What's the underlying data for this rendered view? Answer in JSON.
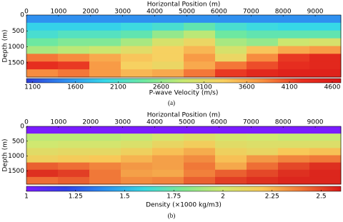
{
  "chart_data": [
    {
      "type": "heatmap",
      "xlabel": "Horizontal Position (m)",
      "ylabel": "Depth (m)",
      "xlim": [
        0,
        9800
      ],
      "xticks": [
        0,
        1000,
        2000,
        3000,
        4000,
        5000,
        6000,
        7000,
        8000,
        9000
      ],
      "ylim": [
        0,
        1950
      ],
      "yticks": [
        0,
        500,
        1000,
        1500
      ],
      "values": [
        [
          1500,
          1500,
          1500,
          1500,
          1500,
          1500,
          1500,
          1500,
          1500,
          1500
        ],
        [
          1900,
          1900,
          1900,
          2000,
          2100,
          2300,
          2100,
          2000,
          1950,
          1950
        ],
        [
          2100,
          2200,
          2200,
          2300,
          2600,
          2800,
          2400,
          2300,
          2300,
          2300
        ],
        [
          2400,
          2500,
          2500,
          2700,
          3000,
          3200,
          2700,
          2600,
          2900,
          3000
        ],
        [
          2700,
          2800,
          2900,
          3100,
          3300,
          3500,
          3000,
          3400,
          3600,
          3700
        ],
        [
          3900,
          3800,
          3600,
          3400,
          3300,
          3700,
          3200,
          3800,
          4200,
          4400
        ],
        [
          4300,
          4200,
          3700,
          3300,
          3200,
          3600,
          3900,
          4100,
          4300,
          4400
        ],
        [
          3800,
          3900,
          3700,
          3500,
          3600,
          3900,
          4200,
          4400,
          4500,
          4500
        ]
      ],
      "colormap": [
        "#2f3fd8",
        "#2f8ef0",
        "#36d8e8",
        "#6ee8a0",
        "#c8e870",
        "#f8d060",
        "#f89040",
        "#e83020",
        "#d81818"
      ],
      "colorbar_label": "P-wave Velocity (m/s)",
      "clim": [
        1028,
        4700
      ],
      "cticks": [
        1100,
        1600,
        2100,
        2600,
        3100,
        3600,
        4100,
        4600
      ],
      "caption": "(a)"
    },
    {
      "type": "heatmap",
      "xlabel": "Horizontal Position (m)",
      "ylabel": "Depth (m)",
      "xlim": [
        0,
        9800
      ],
      "xticks": [
        0,
        1000,
        2000,
        3000,
        4000,
        5000,
        6000,
        7000,
        8000,
        9000
      ],
      "ylim": [
        0,
        1950
      ],
      "yticks": [
        0,
        500,
        1000,
        1500
      ],
      "values": [
        [
          1.0,
          1.0,
          1.0,
          1.0,
          1.0,
          1.0,
          1.0,
          1.0,
          1.0,
          1.0
        ],
        [
          1.95,
          1.95,
          1.95,
          1.97,
          2.02,
          2.07,
          2.02,
          2.0,
          1.98,
          1.98
        ],
        [
          2.0,
          2.02,
          2.02,
          2.05,
          2.12,
          2.17,
          2.08,
          2.06,
          2.06,
          2.06
        ],
        [
          2.08,
          2.1,
          2.1,
          2.15,
          2.22,
          2.27,
          2.15,
          2.12,
          2.2,
          2.22
        ],
        [
          2.15,
          2.18,
          2.2,
          2.25,
          2.3,
          2.35,
          2.22,
          2.32,
          2.37,
          2.4
        ],
        [
          2.45,
          2.42,
          2.37,
          2.32,
          2.3,
          2.4,
          2.28,
          2.42,
          2.5,
          2.55
        ],
        [
          2.55,
          2.52,
          2.4,
          2.3,
          2.28,
          2.38,
          2.45,
          2.5,
          2.55,
          2.57
        ],
        [
          2.42,
          2.45,
          2.4,
          2.35,
          2.37,
          2.45,
          2.52,
          2.55,
          2.57,
          2.57
        ]
      ],
      "colormap": [
        "#7a1cff",
        "#3040e8",
        "#2a90f0",
        "#38d8e0",
        "#80e890",
        "#d0e870",
        "#f8c858",
        "#f07838",
        "#d81818"
      ],
      "colorbar_label": "Density (×1000 kg/m3)",
      "clim": [
        1,
        2.6
      ],
      "cticks": [
        1,
        1.25,
        1.5,
        1.75,
        2,
        2.25,
        2.5
      ],
      "caption": "(b)"
    }
  ]
}
